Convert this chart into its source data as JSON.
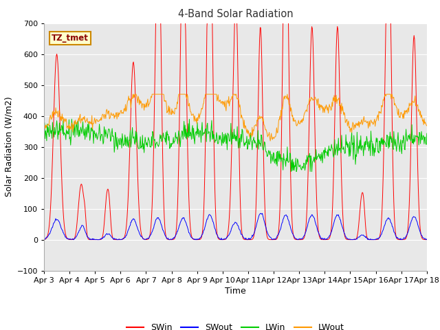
{
  "title": "4-Band Solar Radiation",
  "xlabel": "Time",
  "ylabel": "Solar Radiation (W/m2)",
  "ylim": [
    -100,
    700
  ],
  "annotation_text": "TZ_tmet",
  "annotation_bg": "#ffffcc",
  "annotation_border": "#cc8800",
  "annotation_text_color": "#8b0000",
  "xtick_labels": [
    "Apr 3",
    "Apr 4",
    "Apr 5",
    "Apr 6",
    "Apr 7",
    "Apr 8",
    "Apr 9",
    "Apr 10",
    "Apr 11",
    "Apr 12",
    "Apr 13",
    "Apr 14",
    "Apr 15",
    "Apr 16",
    "Apr 17",
    "Apr 18"
  ],
  "ytick_vals": [
    -100,
    0,
    100,
    200,
    300,
    400,
    500,
    600,
    700
  ],
  "colors": {
    "SWin": "#ff0000",
    "SWout": "#0000ff",
    "LWin": "#00cc00",
    "LWout": "#ff9900"
  },
  "legend_labels": [
    "SWin",
    "SWout",
    "LWin",
    "LWout"
  ],
  "fig_bg": "#ffffff",
  "plot_bg": "#e8e8e8",
  "grid_color": "#ffffff",
  "n_days": 15,
  "pts_per_day": 48
}
